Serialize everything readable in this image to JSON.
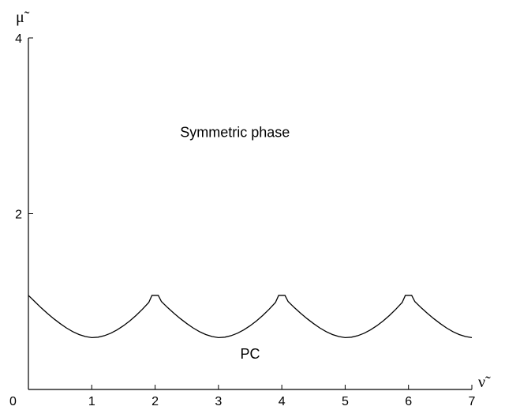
{
  "chart_data": {
    "type": "line",
    "title": "",
    "xlabel": "ν̃",
    "ylabel": "μ̃",
    "xlim": [
      0,
      7
    ],
    "ylim": [
      0,
      4
    ],
    "origin_label": "0",
    "x_ticks": [
      {
        "value": 1,
        "label": "1"
      },
      {
        "value": 2,
        "label": "2"
      },
      {
        "value": 3,
        "label": "3"
      },
      {
        "value": 4,
        "label": "4"
      },
      {
        "value": 5,
        "label": "5"
      },
      {
        "value": 6,
        "label": "6"
      },
      {
        "value": 7,
        "label": "7"
      }
    ],
    "y_ticks": [
      {
        "value": 2,
        "label": "2"
      },
      {
        "value": 4,
        "label": "4"
      }
    ],
    "grid": false,
    "series": [
      {
        "description": "phase boundary",
        "points": [
          [
            0.0,
            1.07
          ],
          [
            0.1,
            1.0
          ],
          [
            0.2,
            0.93
          ],
          [
            0.3,
            0.865
          ],
          [
            0.4,
            0.805
          ],
          [
            0.5,
            0.75
          ],
          [
            0.6,
            0.7
          ],
          [
            0.7,
            0.658
          ],
          [
            0.8,
            0.625
          ],
          [
            0.9,
            0.602
          ],
          [
            1.0,
            0.59
          ],
          [
            1.1,
            0.595
          ],
          [
            1.2,
            0.612
          ],
          [
            1.3,
            0.64
          ],
          [
            1.4,
            0.678
          ],
          [
            1.5,
            0.725
          ],
          [
            1.6,
            0.78
          ],
          [
            1.7,
            0.843
          ],
          [
            1.8,
            0.913
          ],
          [
            1.9,
            0.99
          ],
          [
            1.95,
            1.07
          ],
          [
            2.05,
            1.07
          ],
          [
            2.1,
            1.0
          ],
          [
            2.2,
            0.93
          ],
          [
            2.3,
            0.865
          ],
          [
            2.4,
            0.805
          ],
          [
            2.5,
            0.75
          ],
          [
            2.6,
            0.7
          ],
          [
            2.7,
            0.658
          ],
          [
            2.8,
            0.625
          ],
          [
            2.9,
            0.602
          ],
          [
            3.0,
            0.59
          ],
          [
            3.1,
            0.595
          ],
          [
            3.2,
            0.612
          ],
          [
            3.3,
            0.64
          ],
          [
            3.4,
            0.678
          ],
          [
            3.5,
            0.725
          ],
          [
            3.6,
            0.78
          ],
          [
            3.7,
            0.843
          ],
          [
            3.8,
            0.913
          ],
          [
            3.9,
            0.99
          ],
          [
            3.95,
            1.07
          ],
          [
            4.05,
            1.07
          ],
          [
            4.1,
            1.0
          ],
          [
            4.2,
            0.93
          ],
          [
            4.3,
            0.865
          ],
          [
            4.4,
            0.805
          ],
          [
            4.5,
            0.75
          ],
          [
            4.6,
            0.7
          ],
          [
            4.7,
            0.658
          ],
          [
            4.8,
            0.625
          ],
          [
            4.9,
            0.602
          ],
          [
            5.0,
            0.59
          ],
          [
            5.1,
            0.595
          ],
          [
            5.2,
            0.612
          ],
          [
            5.3,
            0.64
          ],
          [
            5.4,
            0.678
          ],
          [
            5.5,
            0.725
          ],
          [
            5.6,
            0.78
          ],
          [
            5.7,
            0.843
          ],
          [
            5.8,
            0.913
          ],
          [
            5.9,
            0.99
          ],
          [
            5.95,
            1.07
          ],
          [
            6.05,
            1.07
          ],
          [
            6.1,
            1.0
          ],
          [
            6.2,
            0.93
          ],
          [
            6.3,
            0.865
          ],
          [
            6.4,
            0.805
          ],
          [
            6.5,
            0.75
          ],
          [
            6.6,
            0.7
          ],
          [
            6.7,
            0.658
          ],
          [
            6.8,
            0.625
          ],
          [
            6.9,
            0.602
          ],
          [
            7.0,
            0.59
          ]
        ]
      }
    ],
    "annotations": [
      {
        "text": "Symmetric phase",
        "x": 3.26,
        "y": 2.87
      },
      {
        "text": "PC",
        "x": 3.5,
        "y": 0.35
      }
    ]
  }
}
